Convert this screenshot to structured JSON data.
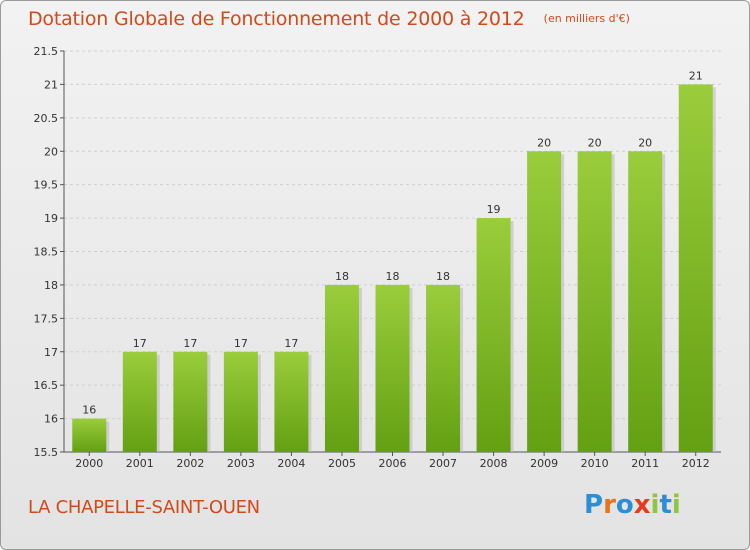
{
  "title": "Dotation Globale de Fonctionnement de 2000 à 2012",
  "unit_note": "(en milliers d'€)",
  "commune": "LA CHAPELLE-SAINT-OUEN",
  "logo": {
    "text": "Proxiti",
    "letters": [
      {
        "ch": "P",
        "color": "#2b8fd4"
      },
      {
        "ch": "r",
        "color": "#e8741a"
      },
      {
        "ch": "o",
        "color": "#2b8fd4"
      },
      {
        "ch": "x",
        "color": "#e83a1a"
      },
      {
        "ch": "i",
        "color": "#8dc63f"
      },
      {
        "ch": "t",
        "color": "#2b8fd4"
      },
      {
        "ch": "i",
        "color": "#8dc63f"
      }
    ]
  },
  "colors": {
    "title": "#d24a1a",
    "bar_light": "#9acd3c",
    "bar_dark": "#63a012",
    "grid": "#cfcfcf"
  },
  "chart_data": {
    "type": "bar",
    "categories": [
      "2000",
      "2001",
      "2002",
      "2003",
      "2004",
      "2005",
      "2006",
      "2007",
      "2008",
      "2009",
      "2010",
      "2011",
      "2012"
    ],
    "values": [
      16,
      17,
      17,
      17,
      17,
      18,
      18,
      18,
      19,
      20,
      20,
      20,
      21
    ],
    "data_labels": [
      "16",
      "17",
      "17",
      "17",
      "17",
      "18",
      "18",
      "18",
      "19",
      "20",
      "20",
      "20",
      "21"
    ],
    "ylim": [
      15.5,
      21.5
    ],
    "yticks": [
      15.5,
      16,
      16.5,
      17,
      17.5,
      18,
      18.5,
      19,
      19.5,
      20,
      20.5,
      21,
      21.5
    ],
    "ytick_labels": [
      "15.5",
      "16",
      "16.5",
      "17",
      "17.5",
      "18",
      "18.5",
      "19",
      "19.5",
      "20",
      "20.5",
      "21",
      "21.5"
    ],
    "grid": true,
    "title": "Dotation Globale de Fonctionnement de 2000 à 2012",
    "xlabel": "",
    "ylabel": ""
  }
}
